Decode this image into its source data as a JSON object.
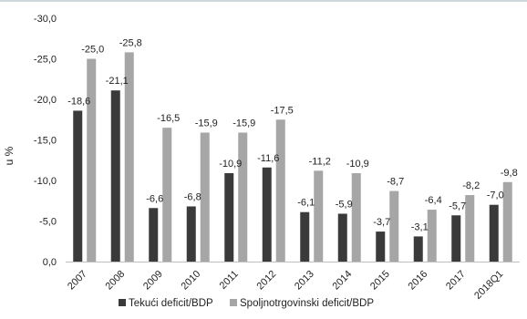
{
  "chart_data": {
    "type": "bar",
    "categories": [
      "2007",
      "2008",
      "2009",
      "2010",
      "2011",
      "2012",
      "2013",
      "2014",
      "2015",
      "2016",
      "2017",
      "2018Q1"
    ],
    "series": [
      {
        "name": "Tekući deficit/BDP",
        "color": "#3a3a3a",
        "values": [
          -18.6,
          -21.1,
          -6.6,
          -6.8,
          -10.9,
          -11.6,
          -6.1,
          -5.9,
          -3.7,
          -3.1,
          -5.7,
          -7.0
        ],
        "labels": [
          "-18,6",
          "-21,1",
          "-6,6",
          "-6,8",
          "-10,9",
          "-11,6",
          "-6,1",
          "-5,9",
          "-3,7",
          "-3,1",
          "-5,7",
          "-7,0"
        ]
      },
      {
        "name": "Spoljnotrgovinski deficit/BDP",
        "color": "#a6a6a6",
        "values": [
          -25.0,
          -25.8,
          -16.5,
          -15.9,
          -15.9,
          -17.5,
          -11.2,
          -10.9,
          -8.7,
          -6.4,
          -8.2,
          -9.8
        ],
        "labels": [
          "-25,0",
          "-25,8",
          "-16,5",
          "-15,9",
          "-15,9",
          "-17,5",
          "-11,2",
          "-10,9",
          "-8,7",
          "-6,4",
          "-8,2",
          "-9,8"
        ]
      }
    ],
    "ylabel": "u %",
    "ylim": [
      0,
      -30
    ],
    "yticks": [
      0,
      -5,
      -10,
      -15,
      -20,
      -25,
      -30
    ],
    "ytick_labels": [
      "0,0",
      "-5,0",
      "-10,0",
      "-15,0",
      "-20,0",
      "-25,0",
      "-30,0"
    ],
    "grid": false,
    "legend_position": "bottom"
  }
}
